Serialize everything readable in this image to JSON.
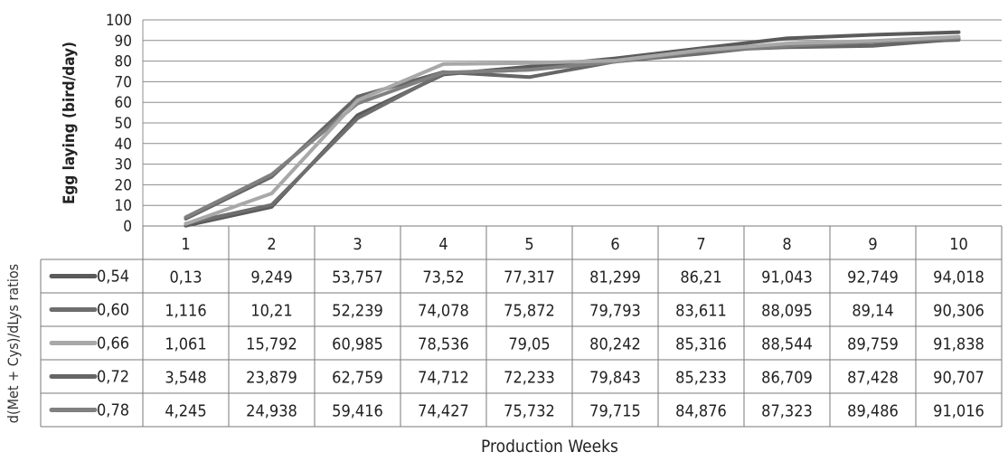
{
  "chart_data": {
    "type": "line",
    "ylabel": "Egg laying (bird/day)",
    "xlabel": "Production Weeks",
    "row_label": "d(Met + Cys)/dLys ratios",
    "ylim": [
      0,
      100
    ],
    "yticks": [
      0,
      10,
      20,
      30,
      40,
      50,
      60,
      70,
      80,
      90,
      100
    ],
    "categories": [
      "1",
      "2",
      "3",
      "4",
      "5",
      "6",
      "7",
      "8",
      "9",
      "10"
    ],
    "grid": true,
    "legend": "data-table",
    "series": [
      {
        "name": "0,54",
        "color": "#5a5a5a",
        "values": [
          0.13,
          9.249,
          53.757,
          73.52,
          77.317,
          81.299,
          86.21,
          91.043,
          92.749,
          94.018
        ],
        "labels": [
          "0,13",
          "9,249",
          "53,757",
          "73,52",
          "77,317",
          "81,299",
          "86,21",
          "91,043",
          "92,749",
          "94,018"
        ]
      },
      {
        "name": "0,60",
        "color": "#6e6e6e",
        "values": [
          1.116,
          10.21,
          52.239,
          74.078,
          75.872,
          79.793,
          83.611,
          88.095,
          89.14,
          90.306
        ],
        "labels": [
          "1,116",
          "10,21",
          "52,239",
          "74,078",
          "75,872",
          "79,793",
          "83,611",
          "88,095",
          "89,14",
          "90,306"
        ]
      },
      {
        "name": "0,66",
        "color": "#a8a8a8",
        "values": [
          1.061,
          15.792,
          60.985,
          78.536,
          79.05,
          80.242,
          85.316,
          88.544,
          89.759,
          91.838
        ],
        "labels": [
          "1,061",
          "15,792",
          "60,985",
          "78,536",
          "79,05",
          "80,242",
          "85,316",
          "88,544",
          "89,759",
          "91,838"
        ]
      },
      {
        "name": "0,72",
        "color": "#666666",
        "values": [
          3.548,
          23.879,
          62.759,
          74.712,
          72.233,
          79.843,
          85.233,
          86.709,
          87.428,
          90.707
        ],
        "labels": [
          "3,548",
          "23,879",
          "62,759",
          "74,712",
          "72,233",
          "79,843",
          "85,233",
          "86,709",
          "87,428",
          "90,707"
        ]
      },
      {
        "name": "0,78",
        "color": "#808080",
        "values": [
          4.245,
          24.938,
          59.416,
          74.427,
          75.732,
          79.715,
          84.876,
          87.323,
          89.486,
          91.016
        ],
        "labels": [
          "4,245",
          "24,938",
          "59,416",
          "74,427",
          "75,732",
          "79,715",
          "84,876",
          "87,323",
          "89,486",
          "91,016"
        ]
      }
    ]
  }
}
